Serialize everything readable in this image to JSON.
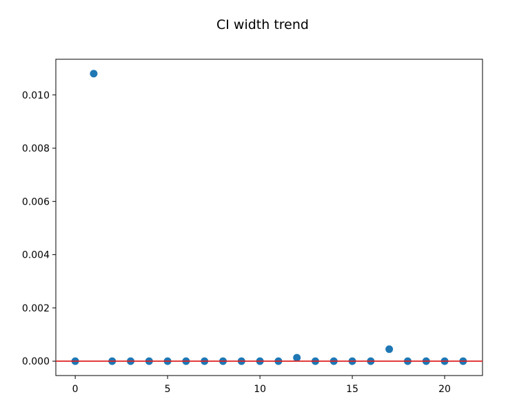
{
  "chart_data": {
    "type": "scatter",
    "title": "CI width trend",
    "xlabel": "",
    "ylabel": "",
    "xlim": [
      -1.05,
      22.05
    ],
    "ylim": [
      -0.00054,
      0.01134
    ],
    "x_ticks": [
      0,
      5,
      10,
      15,
      20
    ],
    "x_tick_labels": [
      "0",
      "5",
      "10",
      "15",
      "20"
    ],
    "y_ticks": [
      0.0,
      0.002,
      0.004,
      0.006,
      0.008,
      0.01
    ],
    "y_tick_labels": [
      "0.000",
      "0.002",
      "0.004",
      "0.006",
      "0.008",
      "0.010"
    ],
    "grid": false,
    "legend": "none",
    "reference_line": {
      "orientation": "horizontal",
      "y": 0.0,
      "color": "#dd2020"
    },
    "series": [
      {
        "color": "#1f77b4",
        "x": [
          0,
          1,
          2,
          3,
          4,
          5,
          6,
          7,
          8,
          9,
          10,
          11,
          12,
          13,
          14,
          15,
          16,
          17,
          18,
          19,
          20,
          21
        ],
        "y": [
          0.0,
          0.0108,
          0.0,
          0.0,
          0.0,
          0.0,
          0.0,
          0.0,
          0.0,
          0.0,
          0.0,
          0.0,
          0.00013,
          0.0,
          0.0,
          0.0,
          0.0,
          0.00045,
          0.0,
          0.0,
          0.0,
          0.0
        ]
      }
    ]
  }
}
